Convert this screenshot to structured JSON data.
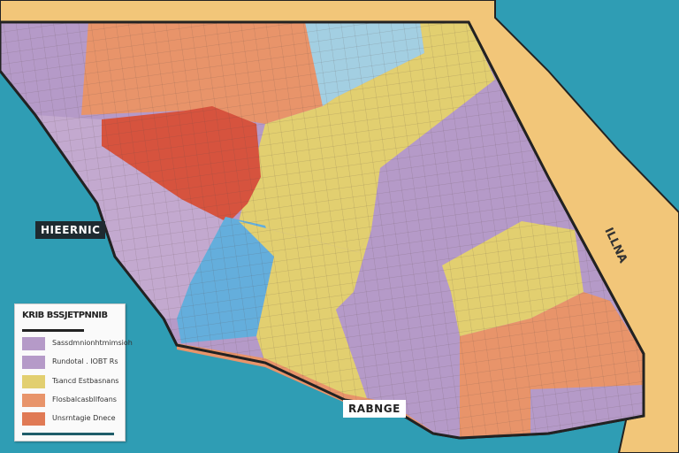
{
  "map": {
    "colors": {
      "ocean": "#2f9db4",
      "land": "#f2c679",
      "purple": "#b59ac8",
      "orange": "#e8946a",
      "red": "#d6533e",
      "blue": "#64aedc",
      "light_blue": "#a3cfe2",
      "yellow": "#e2cf70",
      "street": "#6b5a55"
    },
    "labels": {
      "left": "HIEERNIC",
      "bottom": "RABNGE",
      "right": "ILLNA"
    }
  },
  "legend": {
    "title": "KRIB BSSJETPNNIB",
    "items": [
      {
        "label": "Sassdmnionhtmimsioh",
        "color": "#b59ac8"
      },
      {
        "label": "Rundotal . IOBT Rs",
        "color": "#b59ac8"
      },
      {
        "label": "Tsancd Estbasnans",
        "color": "#e2cf70"
      },
      {
        "label": "Flosbalcasbllfoans",
        "color": "#e8946a"
      },
      {
        "label": "Unsrntagie Dnece",
        "color": "#e07a55"
      }
    ]
  }
}
